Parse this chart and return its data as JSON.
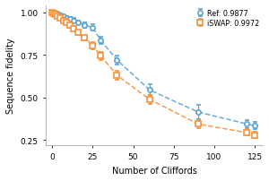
{
  "ref_x": [
    0,
    1,
    2,
    3,
    5,
    7,
    9,
    11,
    13,
    16,
    20,
    25,
    30,
    40,
    60,
    90,
    120,
    125
  ],
  "ref_y": [
    1.0,
    0.998,
    0.994,
    0.99,
    0.983,
    0.975,
    0.968,
    0.96,
    0.952,
    0.94,
    0.925,
    0.91,
    0.835,
    0.72,
    0.545,
    0.415,
    0.345,
    0.335
  ],
  "ref_yerr": [
    0.003,
    0.005,
    0.006,
    0.007,
    0.008,
    0.009,
    0.01,
    0.011,
    0.012,
    0.013,
    0.015,
    0.018,
    0.022,
    0.025,
    0.032,
    0.04,
    0.022,
    0.02
  ],
  "iswap_x": [
    0,
    1,
    2,
    3,
    5,
    7,
    9,
    11,
    13,
    16,
    20,
    25,
    30,
    40,
    60,
    90,
    120,
    125
  ],
  "iswap_y": [
    0.998,
    0.993,
    0.986,
    0.978,
    0.965,
    0.952,
    0.938,
    0.922,
    0.905,
    0.88,
    0.85,
    0.805,
    0.745,
    0.63,
    0.49,
    0.345,
    0.295,
    0.28
  ],
  "iswap_yerr": [
    0.004,
    0.006,
    0.007,
    0.008,
    0.009,
    0.01,
    0.011,
    0.012,
    0.013,
    0.015,
    0.017,
    0.02,
    0.023,
    0.026,
    0.026,
    0.025,
    0.018,
    0.018
  ],
  "ref_color": "#5BA4CF",
  "iswap_color": "#F5923E",
  "ref_label": "Ref: 0.9877",
  "iswap_label": "iSWAP: 0.9972",
  "xlabel": "Number of Cliffords",
  "ylabel": "Sequence fidelity",
  "xlim": [
    -4,
    130
  ],
  "ylim": [
    0.22,
    1.04
  ],
  "yticks": [
    0.25,
    0.5,
    0.75,
    1.0
  ],
  "xticks": [
    0,
    25,
    50,
    75,
    100,
    125
  ]
}
